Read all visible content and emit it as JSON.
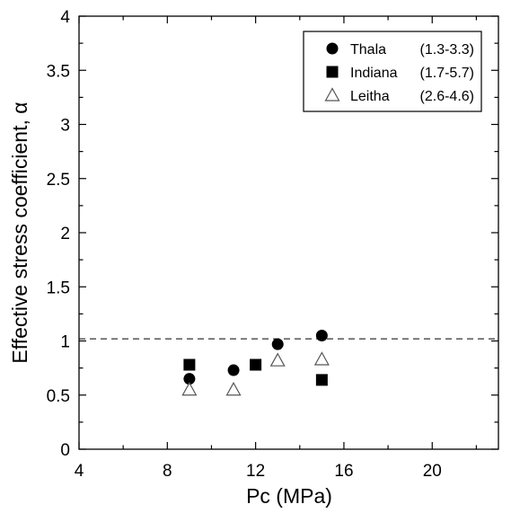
{
  "chart_data": {
    "type": "scatter",
    "title": "",
    "xlabel": "Pc (MPa)",
    "ylabel": "Effective stress coefficient, α",
    "xlim": [
      4,
      23
    ],
    "ylim": [
      0,
      4
    ],
    "x_ticks": [
      "4",
      "8",
      "12",
      "16",
      "20"
    ],
    "y_ticks": [
      "0",
      "0.5",
      "1",
      "1.5",
      "2",
      "2.5",
      "3",
      "3.5",
      "4"
    ],
    "reference_line": {
      "y": 1.02,
      "style": "dashed"
    },
    "grid": false,
    "legend_position": "top-right",
    "series": [
      {
        "name": "Thala",
        "range": "(1.3-3.3)",
        "marker": "filled-circle",
        "color": "#000000",
        "points": [
          {
            "x": 9,
            "y": 0.65
          },
          {
            "x": 11,
            "y": 0.73
          },
          {
            "x": 13,
            "y": 0.97
          },
          {
            "x": 15,
            "y": 1.05
          }
        ]
      },
      {
        "name": "Indiana",
        "range": "(1.7-5.7)",
        "marker": "filled-square",
        "color": "#000000",
        "points": [
          {
            "x": 9,
            "y": 0.78
          },
          {
            "x": 12,
            "y": 0.78
          },
          {
            "x": 15,
            "y": 0.64
          }
        ]
      },
      {
        "name": "Leitha",
        "range": "(2.6-4.6)",
        "marker": "open-triangle",
        "color": "#000000",
        "points": [
          {
            "x": 9,
            "y": 0.55
          },
          {
            "x": 11,
            "y": 0.55
          },
          {
            "x": 13,
            "y": 0.82
          },
          {
            "x": 15,
            "y": 0.83
          }
        ]
      }
    ]
  }
}
